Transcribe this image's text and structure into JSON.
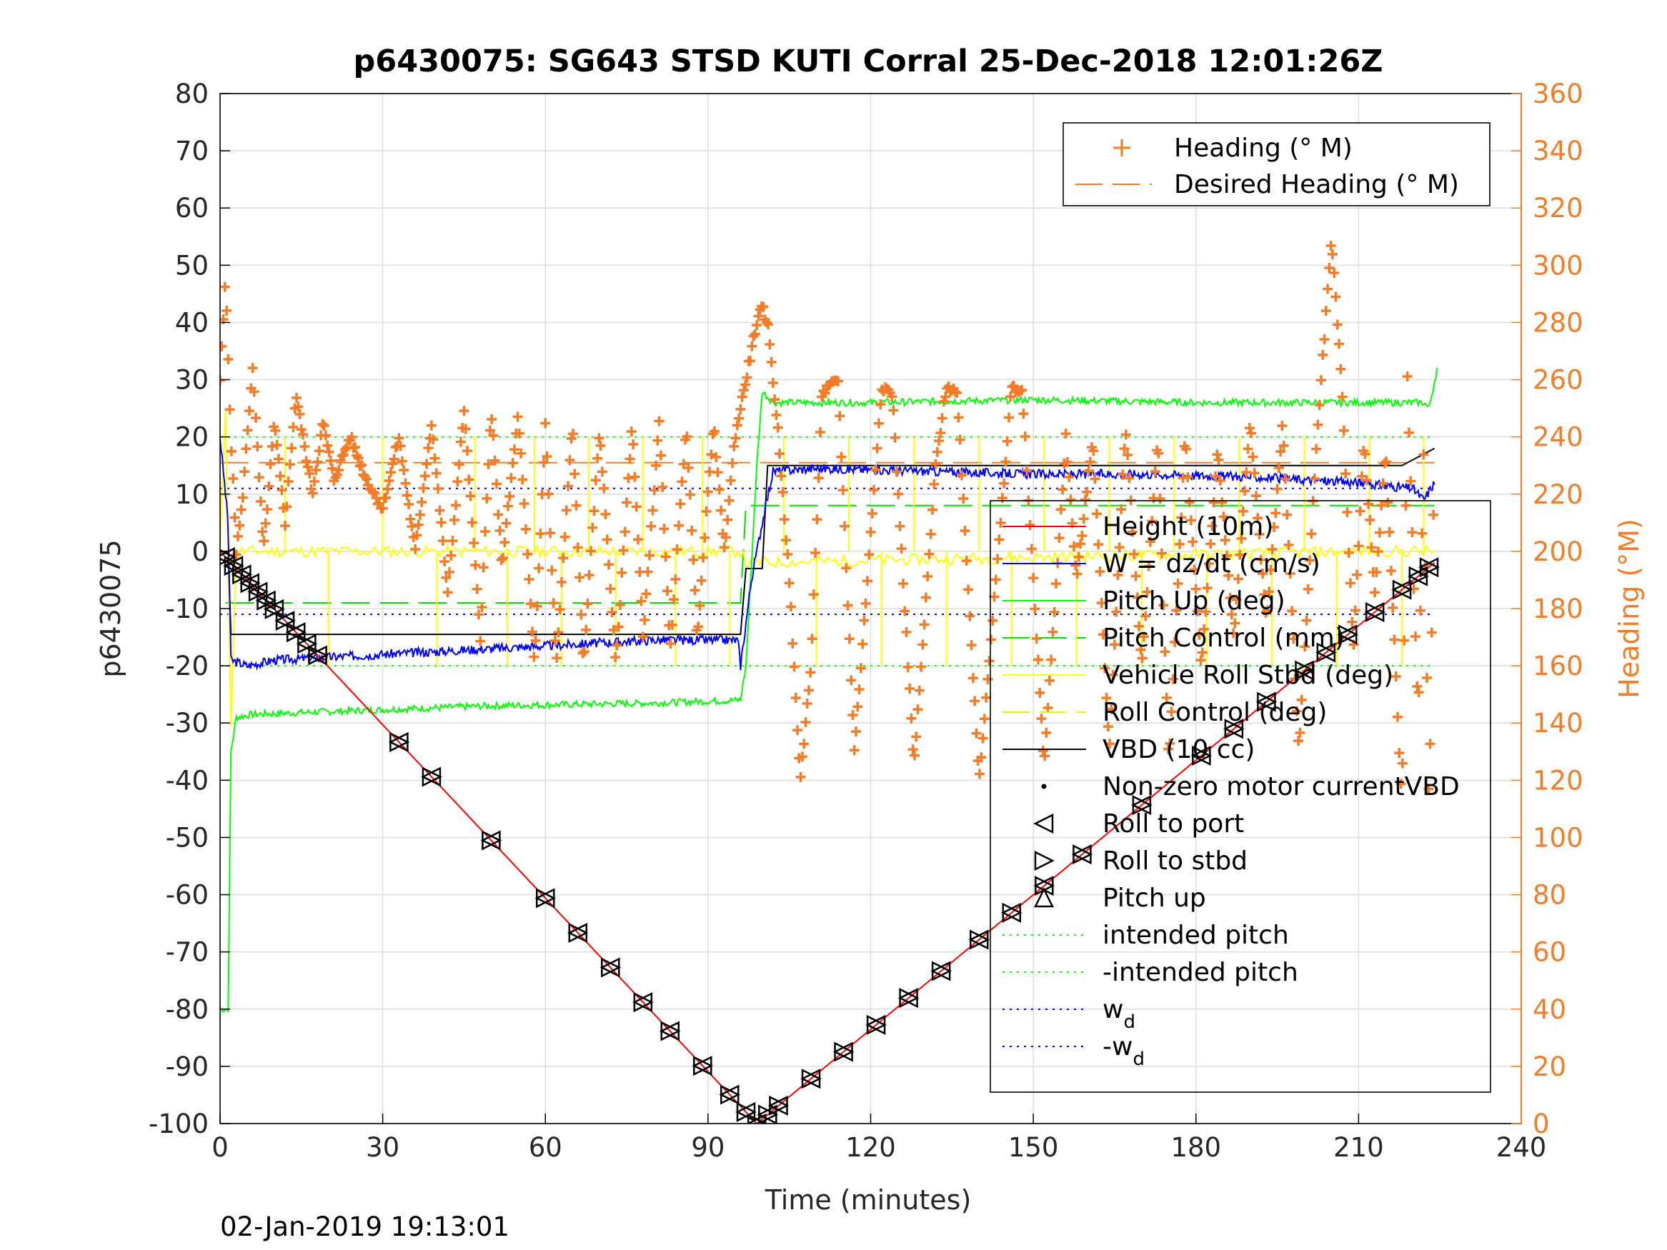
{
  "chart_data": {
    "type": "line",
    "title": "p6430075: SG643 STSD KUTI Corral 25-Dec-2018 12:01:26Z",
    "xlabel": "Time (minutes)",
    "ylabel": "p6430075",
    "y2label": "Heading (°M)",
    "footer": "02-Jan-2019 19:13:01",
    "xlim": [
      0,
      240
    ],
    "ylim": [
      -100,
      80
    ],
    "y2lim": [
      0,
      360
    ],
    "grid": true,
    "xticks": [
      0,
      30,
      60,
      90,
      120,
      150,
      180,
      210,
      240
    ],
    "yticks": [
      -100,
      -90,
      -80,
      -70,
      -60,
      -50,
      -40,
      -30,
      -20,
      -10,
      0,
      10,
      20,
      30,
      40,
      50,
      60,
      70,
      80
    ],
    "y2ticks": [
      0,
      20,
      40,
      60,
      80,
      100,
      120,
      140,
      160,
      180,
      200,
      220,
      240,
      260,
      280,
      300,
      320,
      340,
      360
    ],
    "legend_right": {
      "placement": "top-right",
      "entries": [
        "Heading (° M)",
        "Desired Heading (° M)"
      ]
    },
    "legend_left": {
      "placement": "lower-right",
      "entries": [
        "Height (10m)",
        "W = dz/dt (cm/s)",
        "Pitch Up (deg)",
        "Pitch Control (mm)",
        "Vehicle Roll Stbd (deg)",
        "Roll Control (deg)",
        "VBD (10 cc)",
        "Non-zero motor currentVBD",
        "Roll to port",
        "Roll to stbd",
        "Pitch up",
        "intended pitch",
        "-intended pitch",
        "w",
        "-w"
      ],
      "subscript": "d"
    },
    "colors": {
      "height": "#ff0000",
      "w": "#0000ff",
      "pitch": "#00ff00",
      "pitch_control": "#00e000",
      "roll": "#ffff00",
      "roll_control": "#f0f000",
      "vbd": "#000000",
      "heading": "#f57c27",
      "desired_heading": "#f57c27",
      "grid": "#dddddd"
    },
    "series": [
      {
        "name": "Height (10m)",
        "axis": "left",
        "x": [
          0,
          99,
          224
        ],
        "y": [
          0,
          -100,
          -2
        ]
      },
      {
        "name": "W = dz/dt (cm/s)",
        "axis": "left",
        "x": [
          0,
          1.5,
          2,
          5,
          10,
          20,
          40,
          60,
          80,
          95.5,
          96,
          98,
          100,
          102,
          110,
          130,
          150,
          170,
          190,
          210,
          220,
          222,
          224
        ],
        "y": [
          20,
          5,
          -19,
          -20,
          -19,
          -18.5,
          -17.5,
          -16.5,
          -15.5,
          -15.5,
          -20,
          -5,
          5,
          14,
          14.5,
          14,
          13.5,
          13.5,
          13,
          12,
          11,
          9,
          12
        ]
      },
      {
        "name": "Pitch Up (deg)",
        "axis": "left",
        "x": [
          0,
          1.5,
          2,
          3,
          6,
          20,
          50,
          80,
          96,
          97,
          99,
          100,
          102,
          120,
          150,
          180,
          210,
          222,
          223,
          224.5
        ],
        "y": [
          -80,
          -80,
          -35,
          -29,
          -28.5,
          -28,
          -27,
          -26.5,
          -26,
          -20,
          15,
          28,
          26,
          26,
          26.5,
          26,
          26,
          26,
          25,
          32
        ]
      },
      {
        "name": "Pitch Control (mm)",
        "axis": "left",
        "x": [
          1,
          96,
          97,
          224
        ],
        "y": [
          -9,
          -9,
          8,
          8
        ]
      },
      {
        "name": "Vehicle Roll Stbd (deg)",
        "axis": "left",
        "x": [
          0,
          1,
          2,
          3,
          96,
          97,
          210,
          224
        ],
        "y": [
          0,
          25,
          -30,
          0,
          0,
          -2,
          0,
          0
        ]
      },
      {
        "name": "VBD (10 cc)",
        "axis": "left",
        "x": [
          0,
          1.5,
          2,
          96,
          97,
          100,
          101,
          218,
          220,
          222,
          224
        ],
        "y": [
          0,
          0,
          -14.5,
          -14.5,
          -3,
          -3,
          15,
          15,
          16,
          17,
          18
        ]
      },
      {
        "name": "intended pitch",
        "axis": "left",
        "x": [
          0,
          224
        ],
        "y": [
          20,
          20
        ]
      },
      {
        "name": "-intended pitch",
        "axis": "left",
        "x": [
          0,
          224
        ],
        "y": [
          -20,
          -20
        ]
      },
      {
        "name": "w_d",
        "axis": "left",
        "x": [
          0,
          224
        ],
        "y": [
          11,
          11
        ]
      },
      {
        "name": "-w_d",
        "axis": "left",
        "x": [
          0,
          224
        ],
        "y": [
          -11,
          -11
        ]
      },
      {
        "name": "Desired Heading (° M)",
        "axis": "right",
        "x": [
          0,
          224
        ],
        "y": [
          231,
          231
        ]
      },
      {
        "name": "Heading (° M)",
        "axis": "right",
        "x": [
          0,
          1,
          2,
          3,
          4,
          6,
          8,
          10,
          12,
          14,
          17,
          19,
          21,
          24,
          27,
          30,
          33,
          36,
          39,
          42,
          45,
          48,
          50,
          52,
          55,
          58,
          60,
          62,
          65,
          67,
          70,
          73,
          76,
          78,
          81,
          83,
          86,
          88,
          91,
          93,
          95,
          97,
          99,
          100,
          101,
          103,
          105,
          107,
          109,
          111,
          114,
          117,
          119,
          122,
          124,
          128,
          132,
          134,
          136,
          140,
          144,
          146,
          148,
          152,
          156,
          158,
          161,
          164,
          167,
          170,
          173,
          175,
          178,
          181,
          184,
          187,
          190,
          193,
          196,
          199,
          202,
          205,
          207,
          209,
          211,
          213,
          215,
          218,
          219,
          221,
          222,
          223,
          224
        ],
        "y": [
          260,
          295,
          240,
          200,
          215,
          265,
          200,
          245,
          210,
          255,
          220,
          245,
          225,
          240,
          225,
          215,
          240,
          200,
          245,
          185,
          250,
          170,
          250,
          195,
          248,
          160,
          245,
          160,
          245,
          160,
          243,
          160,
          245,
          170,
          245,
          165,
          245,
          170,
          245,
          200,
          240,
          260,
          280,
          285,
          280,
          240,
          190,
          120,
          160,
          255,
          260,
          130,
          180,
          258,
          255,
          125,
          230,
          258,
          255,
          120,
          210,
          258,
          255,
          125,
          240,
          190,
          240,
          130,
          245,
          160,
          240,
          125,
          240,
          160,
          235,
          170,
          245,
          175,
          245,
          130,
          230,
          310,
          255,
          165,
          240,
          185,
          235,
          110,
          260,
          140,
          235,
          105,
          240
        ]
      }
    ]
  }
}
